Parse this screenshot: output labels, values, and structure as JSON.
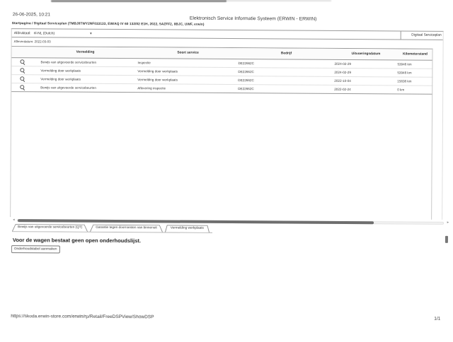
{
  "print_header": {
    "datetime": "26-06-2025, 10:21",
    "title": "Elektronisch Service Informatie Systeem (ERWIN - ERWIN)"
  },
  "breadcrumb": "Startpagina / Digitaal Serviceplan (TMBJ8TWY2NF033133, EW/AQ IV 60 132/82 E1H, 2022, 5AZFF2, 8BJC, UWF, erwin)",
  "toolbar": {
    "language_label": "Afdruktaal:",
    "language_value": "nl-NL (Dutch)",
    "section_label": "Digitaal Serviceplan"
  },
  "vehicle": {
    "delivery_label": "Afleverdatum:",
    "delivery_date": "2022-03-03"
  },
  "service_table": {
    "columns": [
      "Vermelding",
      "Soort service",
      "Bedrijf",
      "Uitvoeringsdatum",
      "Kilometerstand"
    ],
    "rows": [
      {
        "vermelding": "Bewijs van uitgevoerde servicebeurten",
        "soort_service": "Inspectie",
        "bedrijf": "DE22662C",
        "uitvoeringsdatum": "2024-02-29",
        "kilometerstand": "53948 km"
      },
      {
        "vermelding": "Vermelding door werkplaats",
        "soort_service": "Vermelding door werkplaats",
        "bedrijf": "DE22662C",
        "uitvoeringsdatum": "2024-02-29",
        "kilometerstand": "53948 km"
      },
      {
        "vermelding": "Vermelding door werkplaats",
        "soort_service": "Vermelding door werkplaats",
        "bedrijf": "DE22662C",
        "uitvoeringsdatum": "2022-10-04",
        "kilometerstand": "15838 km"
      },
      {
        "vermelding": "Bewijs van uitgevoerde servicebeurten",
        "soort_service": "Aflevering inspectie",
        "bedrijf": "DE22662C",
        "uitvoeringsdatum": "2022-02-24",
        "kilometerstand": "0 km"
      }
    ]
  },
  "tabs": [
    {
      "label": "Bewijs van uitgevoerde servicebeurten (QT)"
    },
    {
      "label": "Garantie tegen doorroesten van binnenuit"
    },
    {
      "label": "Vermelding werkplaats"
    }
  ],
  "maintenance": {
    "message": "Voor de wagen bestaat geen open onderhoudslijst.",
    "create_button": "Onderhoudstabel aanmaken"
  },
  "print_footer": {
    "url": "https://skoda.erwin-store.com/erwin/rp/Retail/FreeDSPView/ShowDSP",
    "page": "1/1"
  }
}
